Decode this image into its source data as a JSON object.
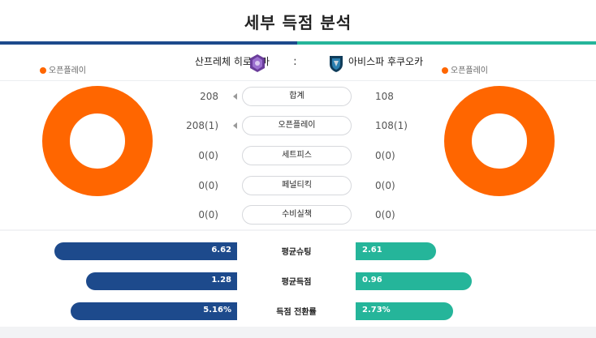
{
  "title": "세부 득점 분석",
  "colors": {
    "home": "#1d4a8c",
    "away": "#25b59a",
    "open_play": "#ff6600"
  },
  "teams": {
    "home": {
      "name": "산프레체 히로시마",
      "crest": "sanfrecce-crest-icon"
    },
    "separator": ":",
    "away": {
      "name": "아비스파 후쿠오카",
      "crest": "avispa-crest-icon"
    }
  },
  "legend": {
    "home_label": "오픈플레이",
    "away_label": "오픈플레이"
  },
  "donut": {
    "home_open_play_share": 1.0,
    "away_open_play_share": 1.0
  },
  "stats": [
    {
      "label": "합계",
      "home": "208",
      "away": "108"
    },
    {
      "label": "오픈플레이",
      "home": "208(1)",
      "away": "108(1)"
    },
    {
      "label": "세트피스",
      "home": "0(0)",
      "away": "0(0)"
    },
    {
      "label": "페널티킥",
      "home": "0(0)",
      "away": "0(0)"
    },
    {
      "label": "수비실책",
      "home": "0(0)",
      "away": "0(0)"
    }
  ],
  "comparisons": [
    {
      "label": "평균슈팅",
      "home": "6.62",
      "away": "2.61",
      "home_fill": 0.98,
      "away_fill": 0.43
    },
    {
      "label": "평균득점",
      "home": "1.28",
      "away": "0.96",
      "home_fill": 0.81,
      "away_fill": 0.62
    },
    {
      "label": "득점 전환률",
      "home": "5.16%",
      "away": "2.73%",
      "home_fill": 0.89,
      "away_fill": 0.52
    }
  ]
}
